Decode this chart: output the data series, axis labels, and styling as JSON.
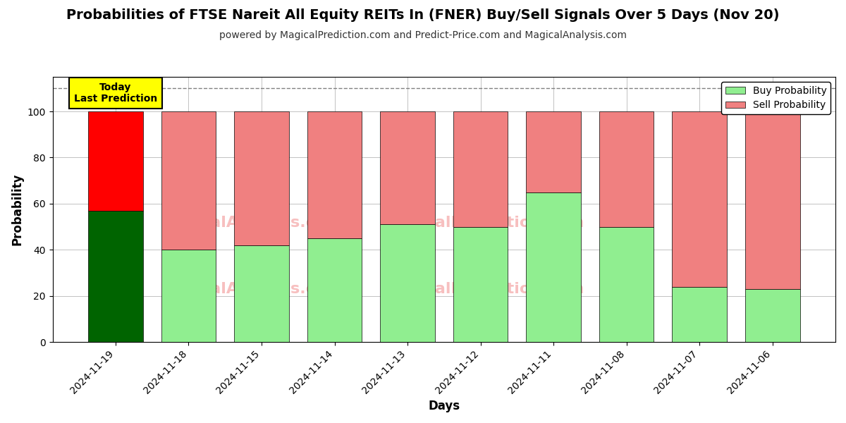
{
  "title": "Probabilities of FTSE Nareit All Equity REITs In (FNER) Buy/Sell Signals Over 5 Days (Nov 20)",
  "subtitle": "powered by MagicalPrediction.com and Predict-Price.com and MagicalAnalysis.com",
  "xlabel": "Days",
  "ylabel": "Probability",
  "watermark2": "MagicalPrediction.com",
  "dates": [
    "2024-11-19",
    "2024-11-18",
    "2024-11-15",
    "2024-11-14",
    "2024-11-13",
    "2024-11-12",
    "2024-11-11",
    "2024-11-08",
    "2024-11-07",
    "2024-11-06"
  ],
  "buy_values": [
    57,
    40,
    42,
    45,
    51,
    50,
    65,
    50,
    24,
    23
  ],
  "sell_values": [
    43,
    60,
    58,
    55,
    49,
    50,
    35,
    50,
    76,
    77
  ],
  "today_bar_buy_color": "#006400",
  "today_bar_sell_color": "#FF0000",
  "other_bar_buy_color": "#90EE90",
  "other_bar_sell_color": "#F08080",
  "today_annotation_bg": "#FFFF00",
  "today_annotation_text": "Today\nLast Prediction",
  "legend_buy_label": "Buy Probability",
  "legend_sell_label": "Sell Probability",
  "dashed_line_y": 110,
  "ylim": [
    0,
    115
  ],
  "yticks": [
    0,
    20,
    40,
    60,
    80,
    100
  ],
  "grid_color": "#aaaaaa",
  "background_color": "#ffffff",
  "title_fontsize": 14,
  "subtitle_fontsize": 10,
  "axis_label_fontsize": 12,
  "tick_fontsize": 10
}
